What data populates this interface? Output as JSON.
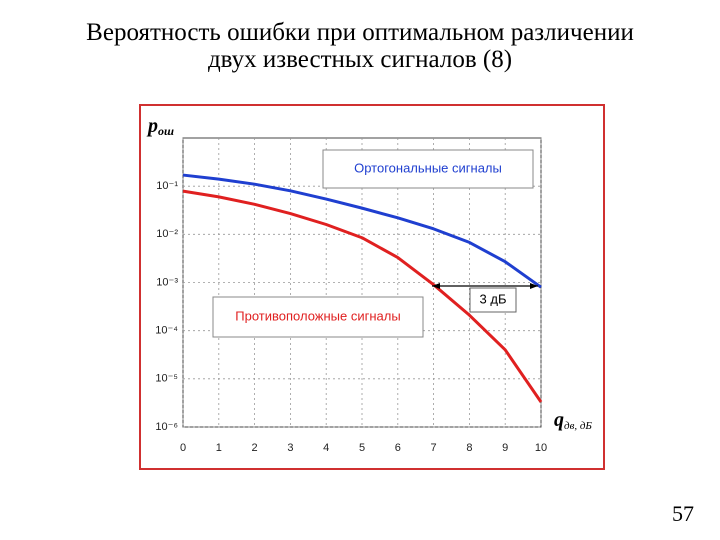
{
  "title_lines": [
    "Вероятность ошибки при оптимальном различении",
    "двух известных сигналов (8)"
  ],
  "page_number": "57",
  "chart_data": {
    "type": "line",
    "x": [
      0,
      1,
      2,
      3,
      4,
      5,
      6,
      7,
      8,
      9,
      10
    ],
    "series": [
      {
        "name": "Ортогональные сигналы",
        "color": "#1f3fd0",
        "values": [
          0.17,
          0.14,
          0.11,
          0.08,
          0.054,
          0.035,
          0.022,
          0.013,
          0.0068,
          0.0027,
          0.0008
        ]
      },
      {
        "name": "Противоположные сигналы",
        "color": "#e02020",
        "values": [
          0.079,
          0.06,
          0.042,
          0.027,
          0.016,
          0.0085,
          0.0033,
          0.0009,
          0.00021,
          4e-05,
          3.3e-06
        ]
      }
    ],
    "annotation": "3 дБ",
    "ylabel": {
      "symbol": "p",
      "subscript": "ош"
    },
    "xlabel": {
      "symbol": "q",
      "subscript": "дв, дБ"
    },
    "xlim": [
      0,
      10
    ],
    "xticks": [
      0,
      1,
      2,
      3,
      4,
      5,
      6,
      7,
      8,
      9,
      10
    ],
    "ylim": [
      1e-06,
      1
    ],
    "yticks": [
      {
        "value": 0.1,
        "label": "10⁻¹"
      },
      {
        "value": 0.01,
        "label": "10⁻²"
      },
      {
        "value": 0.001,
        "label": "10⁻³"
      },
      {
        "value": 0.0001,
        "label": "10⁻⁴"
      },
      {
        "value": 1e-05,
        "label": "10⁻⁵"
      },
      {
        "value": 1e-06,
        "label": "10⁻⁶"
      }
    ],
    "ylog": true,
    "grid": true
  }
}
